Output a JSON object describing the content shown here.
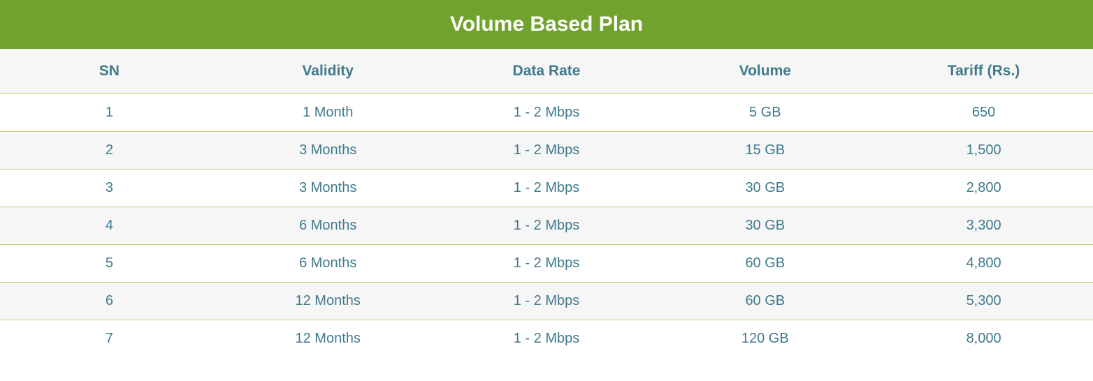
{
  "title": "Volume Based Plan",
  "colors": {
    "header_bg": "#71a22b",
    "header_text": "#ffffff",
    "column_header_bg": "#f6f6f6",
    "column_header_text": "#3f7a8d",
    "row_odd_bg": "#ffffff",
    "row_even_bg": "#f6f6f6",
    "cell_text": "#3f7a8d",
    "row_border": "#b8d77a"
  },
  "columns": [
    "SN",
    "Validity",
    "Data Rate",
    "Volume",
    "Tariff (Rs.)"
  ],
  "rows": [
    [
      "1",
      "1 Month",
      "1 - 2 Mbps",
      "5 GB",
      "650"
    ],
    [
      "2",
      "3 Months",
      "1 - 2 Mbps",
      "15 GB",
      "1,500"
    ],
    [
      "3",
      "3 Months",
      "1 - 2 Mbps",
      "30 GB",
      "2,800"
    ],
    [
      "4",
      "6 Months",
      "1 - 2 Mbps",
      "30 GB",
      "3,300"
    ],
    [
      "5",
      "6 Months",
      "1 - 2 Mbps",
      "60 GB",
      "4,800"
    ],
    [
      "6",
      "12 Months",
      "1 - 2 Mbps",
      "60 GB",
      "5,300"
    ],
    [
      "7",
      "12 Months",
      "1 - 2 Mbps",
      "120 GB",
      "8,000"
    ]
  ]
}
